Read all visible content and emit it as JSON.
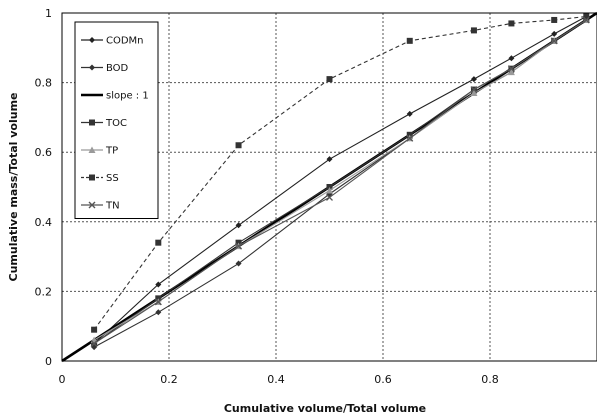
{
  "chart_data": {
    "type": "line",
    "xlabel": "Cumulative volume/Total volume",
    "ylabel": "Cumulative mass/Total volume",
    "xlim": [
      0,
      1
    ],
    "ylim": [
      0,
      1
    ],
    "x_ticks": [
      "0",
      "0.2",
      "0.4",
      "0.6",
      "0.8"
    ],
    "y_ticks": [
      "0",
      "0.2",
      "0.4",
      "0.6",
      "0.8",
      "1"
    ],
    "grid": "dashed",
    "legend_position": "top-left",
    "series": [
      {
        "name": "CODMn",
        "color": "#222222",
        "dash": "solid",
        "marker": "diamond",
        "x": [
          0.06,
          0.18,
          0.33,
          0.5,
          0.65,
          0.77,
          0.84,
          0.92,
          0.98
        ],
        "y": [
          0.05,
          0.22,
          0.39,
          0.58,
          0.71,
          0.81,
          0.87,
          0.94,
          0.99
        ]
      },
      {
        "name": "BOD",
        "color": "#333333",
        "dash": "solid",
        "marker": "diamond",
        "x": [
          0.06,
          0.18,
          0.33,
          0.5,
          0.65,
          0.77,
          0.84,
          0.92,
          0.98
        ],
        "y": [
          0.04,
          0.14,
          0.28,
          0.48,
          0.64,
          0.77,
          0.83,
          0.92,
          0.98
        ]
      },
      {
        "name": "slope : 1",
        "color": "#000000",
        "dash": "solid",
        "marker": "none",
        "x": [
          0,
          1
        ],
        "y": [
          0,
          1
        ]
      },
      {
        "name": "TOC",
        "color": "#333333",
        "dash": "solid",
        "marker": "square",
        "x": [
          0.06,
          0.18,
          0.33,
          0.5,
          0.65,
          0.77,
          0.84,
          0.92,
          0.98
        ],
        "y": [
          0.05,
          0.18,
          0.34,
          0.5,
          0.65,
          0.78,
          0.84,
          0.92,
          0.98
        ]
      },
      {
        "name": "TP",
        "color": "#9a9a9a",
        "dash": "solid",
        "marker": "triangle",
        "x": [
          0.06,
          0.18,
          0.33,
          0.5,
          0.65,
          0.77,
          0.84,
          0.92,
          0.98
        ],
        "y": [
          0.06,
          0.17,
          0.33,
          0.49,
          0.64,
          0.77,
          0.83,
          0.92,
          0.98
        ]
      },
      {
        "name": "SS",
        "color": "#333333",
        "dash": "dashed",
        "marker": "square",
        "x": [
          0.06,
          0.18,
          0.33,
          0.5,
          0.65,
          0.77,
          0.84,
          0.92,
          0.98
        ],
        "y": [
          0.09,
          0.34,
          0.62,
          0.81,
          0.92,
          0.95,
          0.97,
          0.98,
          0.99
        ]
      },
      {
        "name": "TN",
        "color": "#555555",
        "dash": "solid",
        "marker": "x",
        "x": [
          0.06,
          0.18,
          0.33,
          0.5,
          0.65,
          0.77,
          0.84,
          0.92,
          0.98
        ],
        "y": [
          0.05,
          0.17,
          0.33,
          0.47,
          0.64,
          0.78,
          0.84,
          0.92,
          0.98
        ]
      }
    ]
  }
}
